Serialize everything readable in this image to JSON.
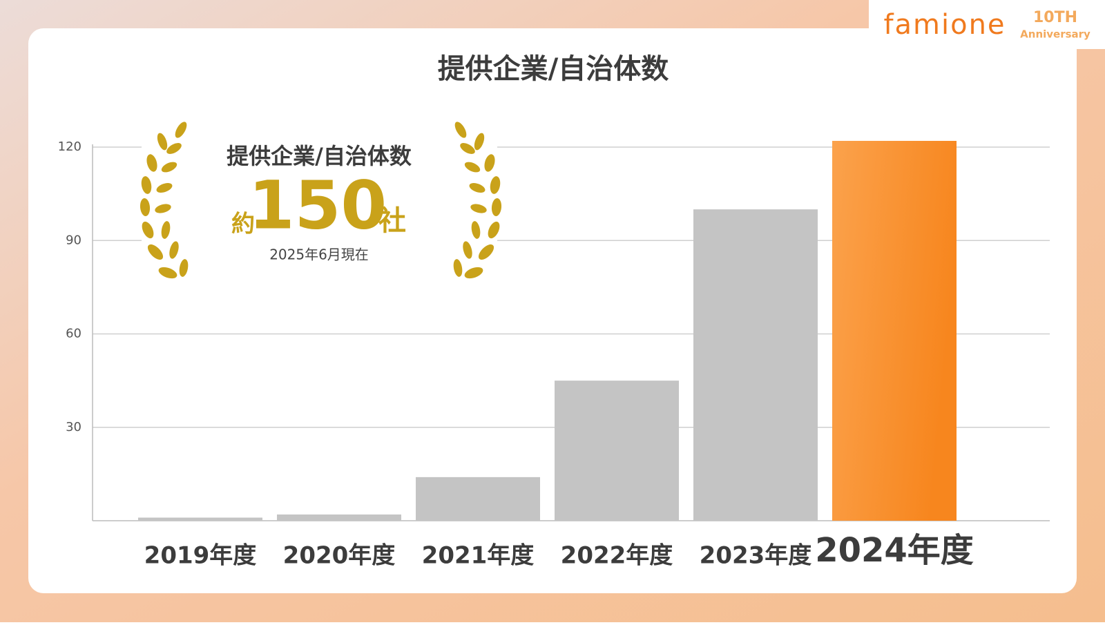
{
  "chart_data": {
    "type": "bar",
    "title": "提供企業/自治体数",
    "categories": [
      "2019年度",
      "2020年度",
      "2021年度",
      "2022年度",
      "2023年度",
      "2024年度"
    ],
    "values": [
      1,
      2,
      14,
      45,
      100,
      122
    ],
    "color": "#c4c4c4",
    "highlight_color": "#f7861e",
    "highlight_index": 5,
    "ylim": [
      0,
      120
    ],
    "yticks": [
      30,
      60,
      90,
      120
    ],
    "grid": true,
    "badge": {
      "title": "提供企業/自治体数",
      "prefix": "約",
      "value": 150,
      "suffix": "社",
      "note": "2025年6月現在"
    }
  },
  "logo": {
    "name": "famione",
    "anniversary": "10TH",
    "anniversary_sub": "Anniversary"
  }
}
